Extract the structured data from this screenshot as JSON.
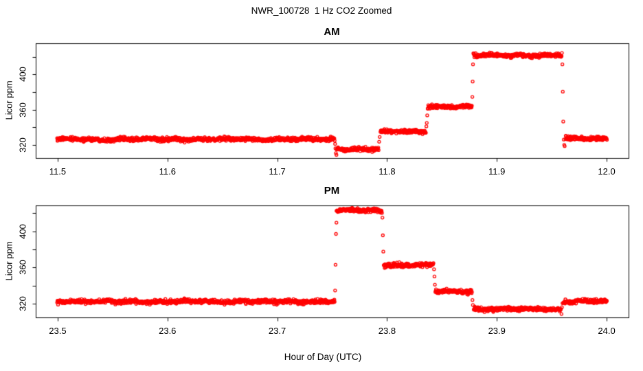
{
  "title": "NWR_100728  1 Hz CO2 Zoomed",
  "xlabel": "Hour of Day (UTC)",
  "colors": {
    "points": "#ff0000",
    "axis": "#000000",
    "background": "#ffffff"
  },
  "chart_data": [
    {
      "type": "scatter",
      "panel": "AM",
      "title": "AM",
      "ylabel": "Licor ppm",
      "marker": "open-circle",
      "sample_rate_hz": 1,
      "xlim": [
        11.48,
        12.02
      ],
      "ylim": [
        305,
        435.5
      ],
      "xticks": [
        11.5,
        11.6,
        11.7,
        11.8,
        11.9,
        12.0
      ],
      "xtick_labels": [
        "11.5",
        "11.6",
        "11.7",
        "11.8",
        "11.9",
        "12.0"
      ],
      "yticks": [
        320,
        340,
        360,
        380,
        400,
        420
      ],
      "yticks_labeled": [
        320,
        360,
        400
      ],
      "ytick_labels": [
        "320",
        "360",
        "400"
      ],
      "segments": [
        {
          "x_start": 11.4995,
          "x_end": 11.7525,
          "value": 326.3,
          "noise": 1.1
        },
        {
          "x_start": 11.754,
          "x_end": 11.7925,
          "value": 315.2,
          "noise": 1.1
        },
        {
          "x_start": 11.794,
          "x_end": 11.8355,
          "value": 335.0,
          "noise": 1.1
        },
        {
          "x_start": 11.837,
          "x_end": 11.8775,
          "value": 363.5,
          "noise": 1.1
        },
        {
          "x_start": 11.879,
          "x_end": 11.959,
          "value": 421.8,
          "noise": 1.1
        },
        {
          "x_start": 11.9625,
          "x_end": 12.0005,
          "value": 327.3,
          "noise": 1.1
        }
      ],
      "transition_points": [
        [
          11.7527,
          321.0
        ],
        [
          11.753,
          316.0
        ],
        [
          11.7534,
          310.5
        ],
        [
          11.7539,
          308.5
        ],
        [
          11.7928,
          323.5
        ],
        [
          11.7933,
          329.0
        ],
        [
          11.8358,
          341.0
        ],
        [
          11.8362,
          345.0
        ],
        [
          11.8366,
          353.5
        ],
        [
          11.8777,
          374.5
        ],
        [
          11.878,
          392.0
        ],
        [
          11.8783,
          411.5
        ],
        [
          11.8786,
          424.0
        ],
        [
          11.9593,
          424.5
        ],
        [
          11.9597,
          411.5
        ],
        [
          11.9601,
          380.5
        ],
        [
          11.9605,
          346.5
        ],
        [
          11.961,
          326.0
        ],
        [
          11.9614,
          320.0
        ],
        [
          11.9618,
          318.5
        ]
      ]
    },
    {
      "type": "scatter",
      "panel": "PM",
      "title": "PM",
      "ylabel": "Licor ppm",
      "marker": "open-circle",
      "sample_rate_hz": 1,
      "xlim": [
        23.48,
        24.02
      ],
      "ylim": [
        304.8,
        428.5
      ],
      "xticks": [
        23.5,
        23.6,
        23.7,
        23.8,
        23.9,
        24.0
      ],
      "xtick_labels": [
        "23.5",
        "23.6",
        "23.7",
        "23.8",
        "23.9",
        "24.0"
      ],
      "yticks": [
        320,
        340,
        360,
        380,
        400,
        420
      ],
      "yticks_labeled": [
        320,
        360,
        400
      ],
      "ytick_labels": [
        "320",
        "360",
        "400"
      ],
      "segments": [
        {
          "x_start": 23.4995,
          "x_end": 23.7525,
          "value": 322.3,
          "noise": 1.1
        },
        {
          "x_start": 23.754,
          "x_end": 23.7955,
          "value": 423.0,
          "noise": 1.1
        },
        {
          "x_start": 23.797,
          "x_end": 23.8425,
          "value": 362.5,
          "noise": 1.1
        },
        {
          "x_start": 23.844,
          "x_end": 23.8775,
          "value": 333.5,
          "noise": 1.1
        },
        {
          "x_start": 23.879,
          "x_end": 23.9585,
          "value": 314.0,
          "noise": 1.1
        },
        {
          "x_start": 23.9605,
          "x_end": 24.0005,
          "value": 322.5,
          "noise": 1.1
        }
      ],
      "transition_points": [
        [
          23.7527,
          334.5
        ],
        [
          23.7531,
          363.0
        ],
        [
          23.7535,
          397.0
        ],
        [
          23.7539,
          409.5
        ],
        [
          23.7958,
          415.0
        ],
        [
          23.7962,
          395.5
        ],
        [
          23.7966,
          377.5
        ],
        [
          23.8428,
          358.0
        ],
        [
          23.8432,
          350.0
        ],
        [
          23.8436,
          341.0
        ],
        [
          23.8778,
          324.0
        ],
        [
          23.8782,
          318.5
        ],
        [
          23.9589,
          308.5
        ],
        [
          23.9593,
          316.0
        ],
        [
          23.9598,
          320.5
        ]
      ]
    }
  ]
}
